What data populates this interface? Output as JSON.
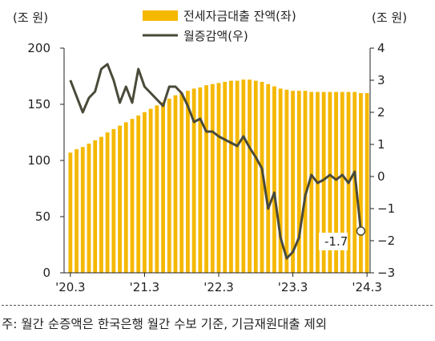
{
  "chart_data": {
    "type": "bar+line",
    "left_unit": "(조 원)",
    "right_unit": "(조 원)",
    "x_tick_labels": [
      "'20.3",
      "'21.3",
      "'22.3",
      "'23.3",
      "'24.3"
    ],
    "x_tick_positions": [
      0,
      12,
      24,
      36,
      48
    ],
    "left_ylim": [
      0,
      200
    ],
    "left_ticks": [
      0,
      50,
      100,
      150,
      200
    ],
    "right_ylim": [
      -3,
      4
    ],
    "right_ticks": [
      -3,
      -2,
      -1,
      0,
      1,
      2,
      3,
      4
    ],
    "series": [
      {
        "name": "전세자금대출 잔액(좌)",
        "type": "bar",
        "axis": "left",
        "color": "#F5B800",
        "values": [
          107,
          110,
          112,
          115,
          118,
          121,
          125,
          128,
          131,
          134,
          137,
          140,
          143,
          146,
          149,
          152,
          155,
          158,
          160,
          162,
          164,
          165,
          167,
          168,
          169,
          170,
          171,
          171,
          172,
          172,
          171,
          170,
          168,
          166,
          164,
          163,
          162,
          162,
          162,
          161,
          161,
          161,
          161,
          161,
          161,
          161,
          161,
          160,
          160
        ]
      },
      {
        "name": "월증감액(우)",
        "type": "line",
        "axis": "right",
        "color": "#4A4A3A",
        "values": [
          3.0,
          2.5,
          2.0,
          2.45,
          2.65,
          3.35,
          3.5,
          3.0,
          2.3,
          2.8,
          2.3,
          3.35,
          2.8,
          2.6,
          2.4,
          2.2,
          2.8,
          2.8,
          2.6,
          2.2,
          1.7,
          1.8,
          1.4,
          1.4,
          1.25,
          1.15,
          1.05,
          0.95,
          1.25,
          0.9,
          0.6,
          0.25,
          -1.0,
          -0.5,
          -1.9,
          -2.55,
          -2.35,
          -1.9,
          -0.6,
          0.05,
          -0.2,
          -0.1,
          0.05,
          -0.1,
          0.05,
          -0.2,
          0.15,
          -1.7
        ]
      }
    ],
    "annotation": {
      "label": "-1.7",
      "value": -1.7
    },
    "legend_position": "top-center",
    "grid": false
  },
  "footnote": "주: 월간 순증액은 한국은행 월간 수보 기준, 기금재원대출 제외"
}
